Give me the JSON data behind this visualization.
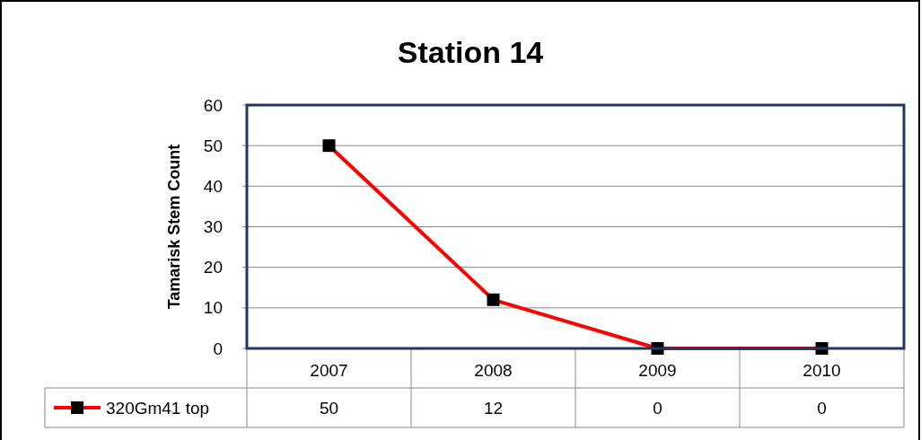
{
  "chart_data": {
    "type": "line",
    "title": "Station 14",
    "ylabel": "Tamarisk Stem Count",
    "categories": [
      "2007",
      "2008",
      "2009",
      "2010"
    ],
    "series": [
      {
        "name": "320Gm41 top",
        "color": "#ff0000",
        "values": [
          50,
          12,
          0,
          0
        ]
      }
    ],
    "ylim": [
      0,
      60
    ],
    "yticks": [
      0,
      10,
      20,
      30,
      40,
      50,
      60
    ],
    "grid": "y",
    "legend": "bottom",
    "marker": "square",
    "line_style": "solid",
    "data_labels": true
  }
}
